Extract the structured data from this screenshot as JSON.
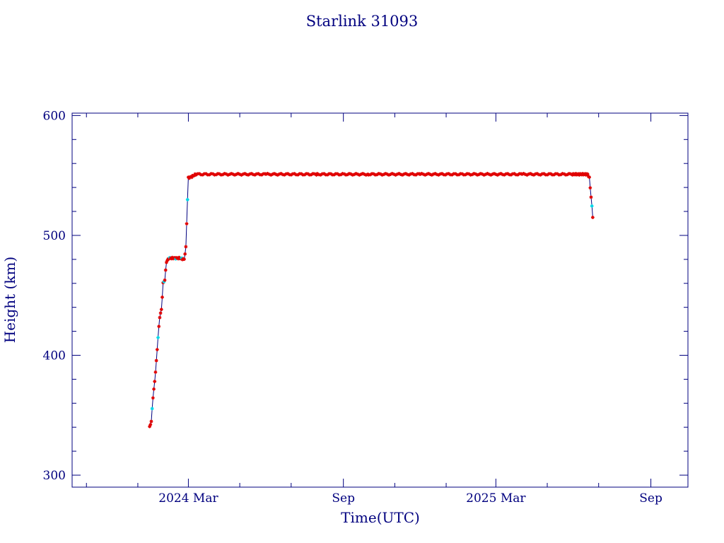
{
  "chart_data": {
    "type": "scatter",
    "title": "Starlink 31093",
    "xlabel": "Time(UTC)",
    "ylabel": "Height (km)",
    "xlim": [
      "2023-10-15",
      "2025-10-15"
    ],
    "ylim": [
      290,
      602
    ],
    "grid": false,
    "legend": "none",
    "colors": {
      "frame": "#00007f",
      "line": "#00007f",
      "marker_primary": "#e00000",
      "marker_secondary": "#00d8e8"
    },
    "x_ticks": [
      {
        "date": "2024-03-01",
        "label": "2024 Mar"
      },
      {
        "date": "2024-09-01",
        "label": "Sep"
      },
      {
        "date": "2025-03-01",
        "label": "2025 Mar"
      },
      {
        "date": "2025-09-01",
        "label": "Sep"
      }
    ],
    "x_minor_ticks": [
      "2023-11-01",
      "2024-01-01",
      "2024-05-01",
      "2024-07-01",
      "2024-11-01",
      "2025-01-01",
      "2025-05-01",
      "2025-07-01"
    ],
    "y_ticks": [
      300,
      400,
      500,
      600
    ],
    "y_minor_step": 20,
    "series": [
      {
        "values": [
          [
            "2024-01-15",
            340
          ],
          [
            "2024-01-17",
            345
          ],
          [
            "2024-01-19",
            365
          ],
          [
            "2024-01-21",
            378
          ],
          [
            "2024-01-23",
            395
          ],
          [
            "2024-01-25",
            415
          ],
          [
            "2024-01-27",
            432
          ],
          [
            "2024-01-29",
            438
          ],
          [
            "2024-01-31",
            460
          ],
          [
            "2024-02-02",
            463
          ],
          [
            "2024-02-04",
            478
          ],
          [
            "2024-02-07",
            481
          ],
          [
            "2024-02-14",
            481
          ],
          [
            "2024-02-20",
            481
          ],
          [
            "2024-02-25",
            480
          ],
          [
            "2024-02-27",
            490
          ],
          [
            "2024-02-28",
            510
          ],
          [
            "2024-02-29",
            530
          ],
          [
            "2024-03-01",
            548
          ],
          [
            "2024-03-05",
            549
          ],
          [
            "2024-03-10",
            551
          ],
          [
            "2024-04-15",
            551
          ],
          [
            "2024-06-01",
            551
          ],
          [
            "2024-08-01",
            551
          ],
          [
            "2024-10-01",
            551
          ],
          [
            "2024-12-01",
            551
          ],
          [
            "2025-02-01",
            551
          ],
          [
            "2025-04-01",
            551
          ],
          [
            "2025-06-01",
            551
          ],
          [
            "2025-06-18",
            551
          ],
          [
            "2025-06-20",
            548
          ],
          [
            "2025-06-21",
            540
          ],
          [
            "2025-06-22",
            532
          ],
          [
            "2025-06-23",
            524
          ],
          [
            "2025-06-24",
            515
          ]
        ]
      }
    ]
  }
}
